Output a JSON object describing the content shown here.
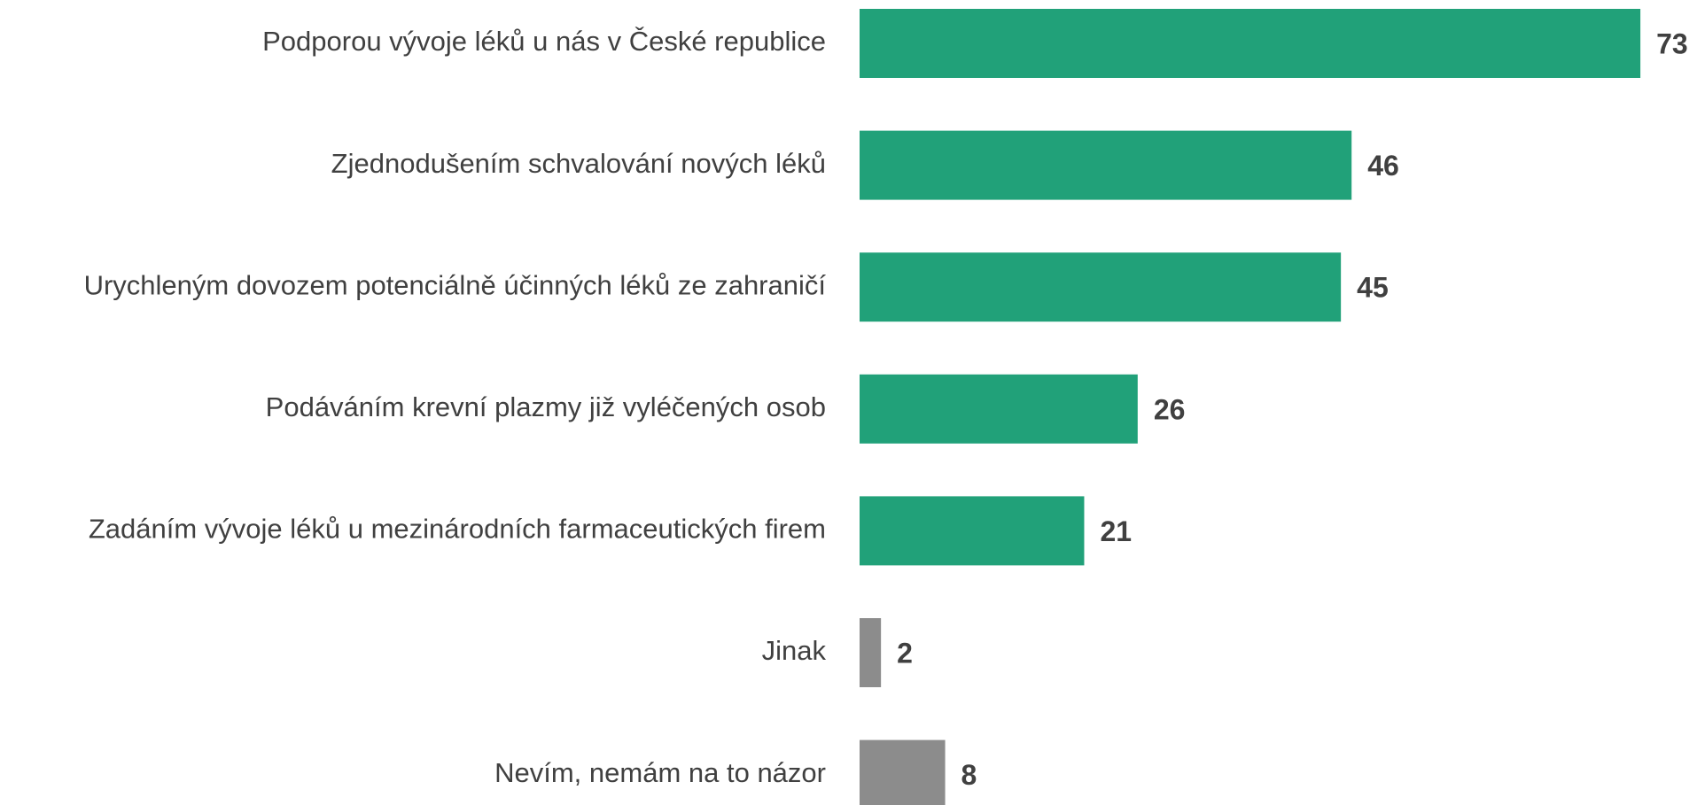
{
  "chart_data": {
    "type": "barh",
    "categories": [
      "Podporou vývoje léků u nás v České republice",
      "Zjednodušením schvalování nových léků",
      "Urychleným dovozem potenciálně účinných léků ze zahraničí",
      "Podáváním krevní plazmy již vyléčených osob",
      "Zadáním vývoje léků u mezinárodních farmaceutických firem",
      "Jinak",
      "Nevím, nemám na to názor"
    ],
    "values": [
      73,
      46,
      45,
      26,
      21,
      2,
      8
    ],
    "colors": [
      "#21a179",
      "#21a179",
      "#21a179",
      "#21a179",
      "#21a179",
      "#8c8c8c",
      "#8c8c8c"
    ]
  }
}
